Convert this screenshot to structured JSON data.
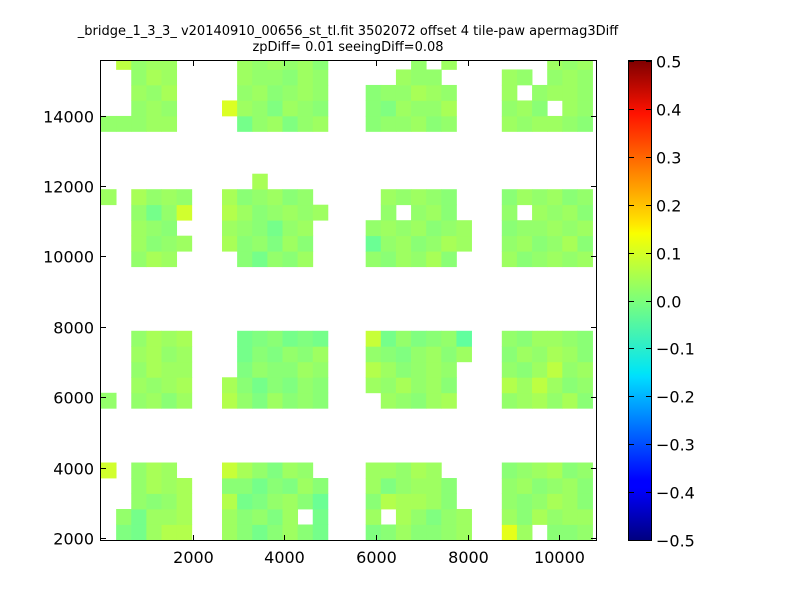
{
  "chart_data": {
    "type": "heatmap",
    "title_lines": [
      "_bridge_1_3_3_ v20140910_00656_st_tl.fit 3502072 offset 4 tile-paw apermag3Diff",
      "zpDiff= 0.01 seeingDiff=0.08"
    ],
    "xlim": [
      0,
      10800
    ],
    "ylim": [
      1950,
      15550
    ],
    "x_ticks": [
      2000,
      4000,
      6000,
      8000,
      10000
    ],
    "y_ticks": [
      2000,
      4000,
      6000,
      8000,
      10000,
      12000,
      14000
    ],
    "colorbar": {
      "colormap": "jet",
      "vmin": -0.5,
      "vmax": 0.5,
      "ticks": [
        0.5,
        0.4,
        0.3,
        0.2,
        0.1,
        0.0,
        -0.1,
        -0.2,
        -0.3,
        -0.4,
        -0.5
      ],
      "tick_labels": [
        "0.5",
        "0.4",
        "0.3",
        "0.2",
        "0.1",
        "0.0",
        "−0.1",
        "−0.2",
        "−0.3",
        "−0.4",
        "−0.5"
      ]
    },
    "cell_width": 330,
    "cell_height": 440,
    "x_centers": [
      165,
      495,
      825,
      1155,
      1485,
      1815,
      2805,
      3135,
      3465,
      3795,
      4125,
      4455,
      4785,
      5940,
      6270,
      6600,
      6930,
      7260,
      7590,
      7920,
      8910,
      9240,
      9570,
      9900,
      10230,
      10560
    ],
    "y_centers": [
      2170,
      2610,
      3050,
      3490,
      3930,
      5910,
      6350,
      6790,
      7230,
      7670,
      9930,
      10370,
      10810,
      11250,
      11690,
      12130,
      13770,
      14210,
      14650,
      15090,
      15530
    ],
    "z_rows": [
      [
        null,
        0,
        -0.01,
        0.03,
        0.05,
        0.05,
        0.03,
        0.01,
        -0.01,
        0.01,
        0.03,
        0.01,
        -0.01,
        0,
        0.01,
        0.03,
        0.01,
        0.01,
        0.02,
        0.03,
        0.1,
        0.03,
        null,
        0.01,
        0.01,
        0.02
      ],
      [
        null,
        0.02,
        -0.01,
        0.03,
        0.03,
        0.04,
        0.03,
        0.01,
        0.02,
        0,
        0.03,
        null,
        -0.01,
        0.03,
        null,
        0.04,
        0.02,
        0,
        0.02,
        0.03,
        0.03,
        0.01,
        0.04,
        0.02,
        0.03,
        0.03
      ],
      [
        null,
        null,
        0.02,
        0.01,
        0.02,
        0.04,
        0.05,
        -0.01,
        0,
        0.02,
        0.03,
        0.01,
        -0.02,
        0.01,
        0.05,
        0.04,
        0.04,
        0.03,
        0.01,
        null,
        0.02,
        0.01,
        0.02,
        0.04,
        0.03,
        0.01
      ],
      [
        null,
        null,
        0.02,
        0.04,
        0.03,
        0.04,
        0.01,
        0.01,
        -0.01,
        0.01,
        0,
        0.03,
        0.01,
        0.03,
        0,
        0.02,
        0.03,
        0.03,
        0.01,
        null,
        0.02,
        0.03,
        0.01,
        0.02,
        0.03,
        0.01
      ],
      [
        0.08,
        null,
        0.02,
        0.04,
        0.03,
        null,
        0.07,
        0.04,
        0.02,
        0,
        0.03,
        0.02,
        null,
        0.03,
        0.03,
        0.02,
        0.04,
        0.03,
        null,
        null,
        0.01,
        0.02,
        0.03,
        0.04,
        0.01,
        0.02
      ],
      [
        0.02,
        null,
        0.02,
        0.03,
        0.01,
        0.03,
        0.05,
        0.02,
        0,
        0.03,
        0.01,
        0.02,
        0.01,
        null,
        0.03,
        0.02,
        0.01,
        0.03,
        0.04,
        null,
        0.02,
        0.03,
        0.04,
        0.02,
        0.04,
        0.01
      ],
      [
        null,
        null,
        0.03,
        0.02,
        0.03,
        0.04,
        0.04,
        0.01,
        -0.01,
        0.01,
        0,
        0.02,
        0.01,
        0.03,
        0.02,
        0.04,
        0.02,
        0.03,
        0.01,
        null,
        0.05,
        0.03,
        0.06,
        0.03,
        0.01,
        0.02
      ],
      [
        null,
        null,
        0.02,
        0.04,
        0.03,
        0.03,
        null,
        0,
        0.02,
        0.01,
        0.01,
        0.03,
        0.02,
        0.05,
        0.03,
        0.01,
        0.02,
        0.03,
        0.02,
        null,
        0.02,
        0.01,
        0.03,
        0.06,
        0.02,
        0.03
      ],
      [
        null,
        null,
        0.03,
        0.04,
        0.02,
        0.03,
        null,
        -0.01,
        0.01,
        0,
        0.02,
        0.01,
        0.03,
        0.02,
        0.01,
        0,
        0.02,
        0.03,
        0.01,
        0.03,
        0.01,
        0.03,
        0.02,
        0.04,
        0.03,
        0.01
      ],
      [
        null,
        null,
        0.02,
        0.04,
        0.03,
        0.04,
        null,
        -0.01,
        0,
        0.01,
        -0.01,
        0,
        -0.01,
        0.07,
        -0.01,
        0.02,
        0,
        0.01,
        0.02,
        -0.03,
        0.02,
        0.01,
        0.03,
        0.03,
        0.02,
        0.01
      ],
      [
        null,
        null,
        0.02,
        0.04,
        0.03,
        null,
        null,
        0.01,
        -0.01,
        0.02,
        0.01,
        0.03,
        null,
        0.02,
        0.01,
        0.03,
        0.02,
        0.04,
        0.01,
        null,
        0.03,
        0.01,
        0.02,
        0.03,
        0.02,
        0.03
      ],
      [
        null,
        null,
        0.03,
        0.01,
        0.02,
        0.03,
        0.04,
        0.01,
        0.02,
        0,
        0.03,
        0.01,
        null,
        -0.02,
        0.02,
        0.03,
        0.01,
        0.02,
        0.04,
        0.03,
        0.02,
        0.03,
        0.01,
        0.02,
        0.04,
        0.01
      ],
      [
        null,
        null,
        0.03,
        0.02,
        0.01,
        null,
        0.03,
        0.02,
        0.01,
        -0.01,
        0.02,
        0.03,
        null,
        0.02,
        0.03,
        0.02,
        0.03,
        0.01,
        0.02,
        0.03,
        0.01,
        0.02,
        0.02,
        0.03,
        0.02,
        0.03
      ],
      [
        null,
        null,
        0.02,
        -0.01,
        0.02,
        0.08,
        0.05,
        0.03,
        0.01,
        0.02,
        0.03,
        0.02,
        0.03,
        null,
        0.02,
        null,
        0.02,
        0.03,
        0.01,
        null,
        0.02,
        null,
        0.03,
        0.02,
        0.03,
        0.01
      ],
      [
        0.03,
        null,
        0.04,
        0.02,
        0.03,
        0.02,
        0.04,
        0.01,
        0.02,
        0.03,
        0.01,
        0.02,
        null,
        null,
        0.03,
        0.02,
        0.03,
        0.02,
        0.01,
        null,
        0.01,
        0.03,
        0.02,
        0.03,
        0.01,
        0.02
      ],
      [
        null,
        null,
        null,
        null,
        null,
        null,
        null,
        null,
        0.04,
        null,
        null,
        null,
        null,
        null,
        null,
        null,
        null,
        null,
        null,
        null,
        null,
        null,
        null,
        null,
        null,
        null
      ],
      [
        0.02,
        0.02,
        0.02,
        0.03,
        0.03,
        null,
        null,
        -0.01,
        0.02,
        0.03,
        0,
        0.02,
        0.03,
        0.01,
        0.02,
        0.02,
        0.03,
        0.01,
        0.02,
        null,
        0.03,
        0.02,
        0.03,
        0.03,
        0.02,
        0.01
      ],
      [
        null,
        null,
        0.02,
        0.03,
        0.02,
        null,
        0.09,
        0.03,
        0.02,
        0,
        0.03,
        0.02,
        0.01,
        0.01,
        0,
        0.03,
        0.02,
        0.02,
        0.04,
        null,
        0.02,
        0.03,
        0.01,
        null,
        0.03,
        0.02
      ],
      [
        null,
        null,
        0.03,
        0.02,
        0.04,
        null,
        null,
        0.02,
        0.03,
        0.01,
        0.02,
        0.03,
        0.02,
        0.01,
        0.02,
        0.02,
        0.04,
        0.03,
        0.02,
        null,
        0.03,
        null,
        0.02,
        0.03,
        0.03,
        0.02
      ],
      [
        null,
        null,
        0.02,
        0.04,
        0.03,
        null,
        null,
        0.03,
        0.02,
        0.02,
        0.01,
        0.03,
        0.02,
        null,
        null,
        0.03,
        0.02,
        0.02,
        null,
        null,
        0.03,
        0.02,
        null,
        0.02,
        0.03,
        0.02
      ],
      [
        null,
        0.06,
        0.02,
        0.03,
        0.03,
        null,
        null,
        0.03,
        0.02,
        0.03,
        0.02,
        0.03,
        0.01,
        null,
        null,
        null,
        0.02,
        null,
        0.03,
        null,
        null,
        null,
        null,
        0.03,
        0.02,
        0.03
      ]
    ]
  }
}
